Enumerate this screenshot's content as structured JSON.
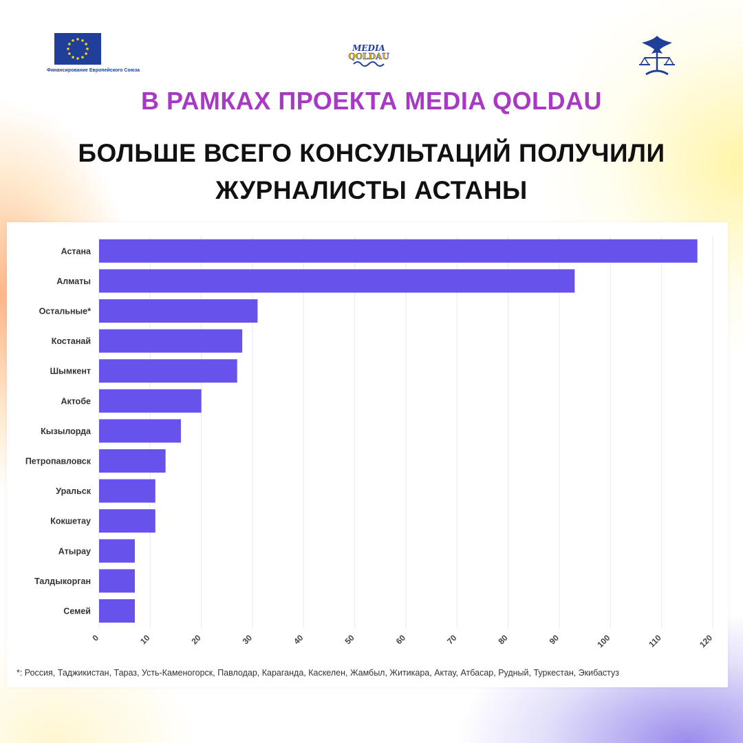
{
  "logos": {
    "eu_caption": "Финансирование Европейского Союза",
    "media_line1": "MEDIA",
    "media_line2": "QOLDAU"
  },
  "subtitle": "В РАМКАХ ПРОЕКТА MEDIA QOLDAU",
  "title": "БОЛЬШЕ ВСЕГО КОНСУЛЬТАЦИЙ ПОЛУЧИЛИ ЖУРНАЛИСТЫ АСТАНЫ",
  "footnote": "*: Россия, Таджикистан, Тараз, Усть-Каменогорск, Павлодар, Караганда, Каскелен, Жамбыл, Житикара, Актау, Атбасар, Рудный, Туркестан, Экибастуз",
  "colors": {
    "bar": "#6752ec",
    "subtitle": "#a839c4",
    "title": "#111111",
    "eu_blue": "#1f3f9a",
    "eu_star": "#ffd500"
  },
  "chart_data": {
    "type": "bar",
    "orientation": "horizontal",
    "categories": [
      "Астана",
      "Алматы",
      "Остальные*",
      "Костанай",
      "Шымкент",
      "Актобе",
      "Кызылорда",
      "Петропавловск",
      "Уральск",
      "Кокшетау",
      "Атырау",
      "Талдыкорган",
      "Семей"
    ],
    "values": [
      117,
      93,
      31,
      28,
      27,
      20,
      16,
      13,
      11,
      11,
      7,
      7,
      7
    ],
    "xlim": [
      0,
      120
    ],
    "xticks": [
      0,
      10,
      20,
      30,
      40,
      50,
      60,
      70,
      80,
      90,
      100,
      110,
      120
    ],
    "grid": true,
    "legend": "none"
  }
}
